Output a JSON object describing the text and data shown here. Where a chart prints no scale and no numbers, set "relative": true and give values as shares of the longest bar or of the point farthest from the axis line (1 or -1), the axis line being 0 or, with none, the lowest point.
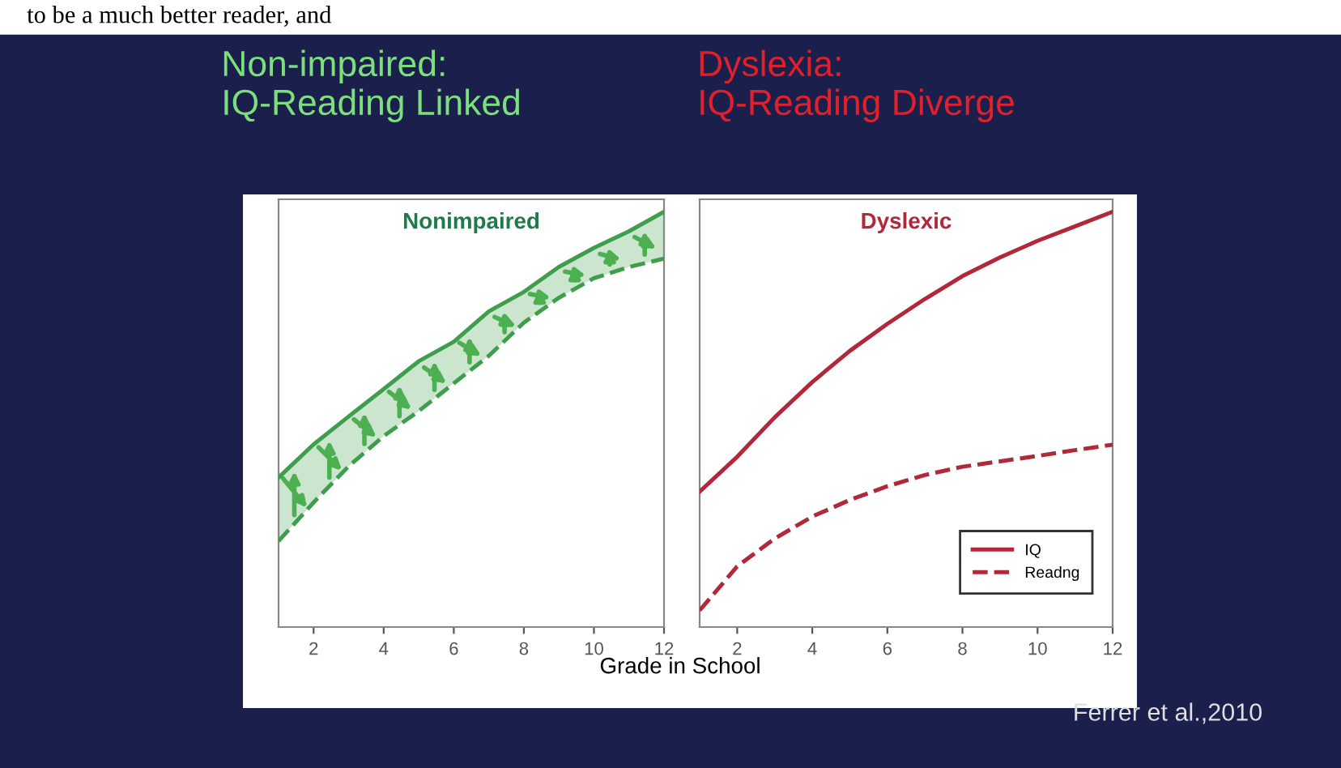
{
  "chart_data": [
    {
      "type": "line",
      "title": "Nonimpaired",
      "xlabel": "Grade in School",
      "relative": true,
      "tick_labels": "x",
      "legend": false,
      "grid": false,
      "marker": "none",
      "x": [
        1,
        2,
        3,
        4,
        5,
        6,
        7,
        8,
        9,
        10,
        11,
        12
      ],
      "xlim": [
        1,
        12
      ],
      "xticks": [
        2,
        4,
        6,
        8,
        10,
        12
      ],
      "annotations": [
        "to be a much better reader, and",
        "Non-impaired:\nIQ-Reading Linked"
      ],
      "series": [
        {
          "color": "#3f9e4c",
          "line_style": "solid",
          "values": [
            0.36,
            0.44,
            0.507,
            0.573,
            0.64,
            0.687,
            0.76,
            0.807,
            0.867,
            0.913,
            0.953,
            1.0
          ],
          "lower": [
            0.207,
            0.3,
            0.387,
            0.46,
            0.52,
            0.587,
            0.653,
            0.733,
            0.793,
            0.84,
            0.867,
            0.887
          ],
          "upper": [
            0.36,
            0.44,
            0.507,
            0.573,
            0.64,
            0.687,
            0.76,
            0.807,
            0.867,
            0.913,
            0.953,
            1.0
          ]
        },
        {
          "color": "#3f9e4c",
          "line_style": "dashed",
          "values": [
            0.207,
            0.3,
            0.387,
            0.46,
            0.52,
            0.587,
            0.653,
            0.733,
            0.793,
            0.84,
            0.867,
            0.887
          ]
        }
      ]
    },
    {
      "type": "line",
      "title": "Dyslexic",
      "relative": true,
      "tick_labels": "x",
      "legend": "bottom right",
      "grid": false,
      "marker": "none",
      "x": [
        1,
        2,
        3,
        4,
        5,
        6,
        7,
        8,
        9,
        10,
        11,
        12
      ],
      "xlim": [
        1,
        12
      ],
      "xticks": [
        2,
        4,
        6,
        8,
        10,
        12
      ],
      "annotations": [
        "Dyslexia:\nIQ-Reading Diverge",
        "Ferrer et al.,2010"
      ],
      "series": [
        {
          "name": "IQ",
          "color": "#b0283a",
          "line_style": "solid",
          "values": [
            0.326,
            0.41,
            0.505,
            0.59,
            0.665,
            0.73,
            0.79,
            0.845,
            0.89,
            0.93,
            0.965,
            1.0
          ]
        },
        {
          "name": "Readng",
          "color": "#b0283a",
          "line_style": "dashed",
          "values": [
            0.04,
            0.146,
            0.213,
            0.266,
            0.306,
            0.339,
            0.366,
            0.386,
            0.399,
            0.412,
            0.426,
            0.439
          ]
        }
      ]
    }
  ]
}
